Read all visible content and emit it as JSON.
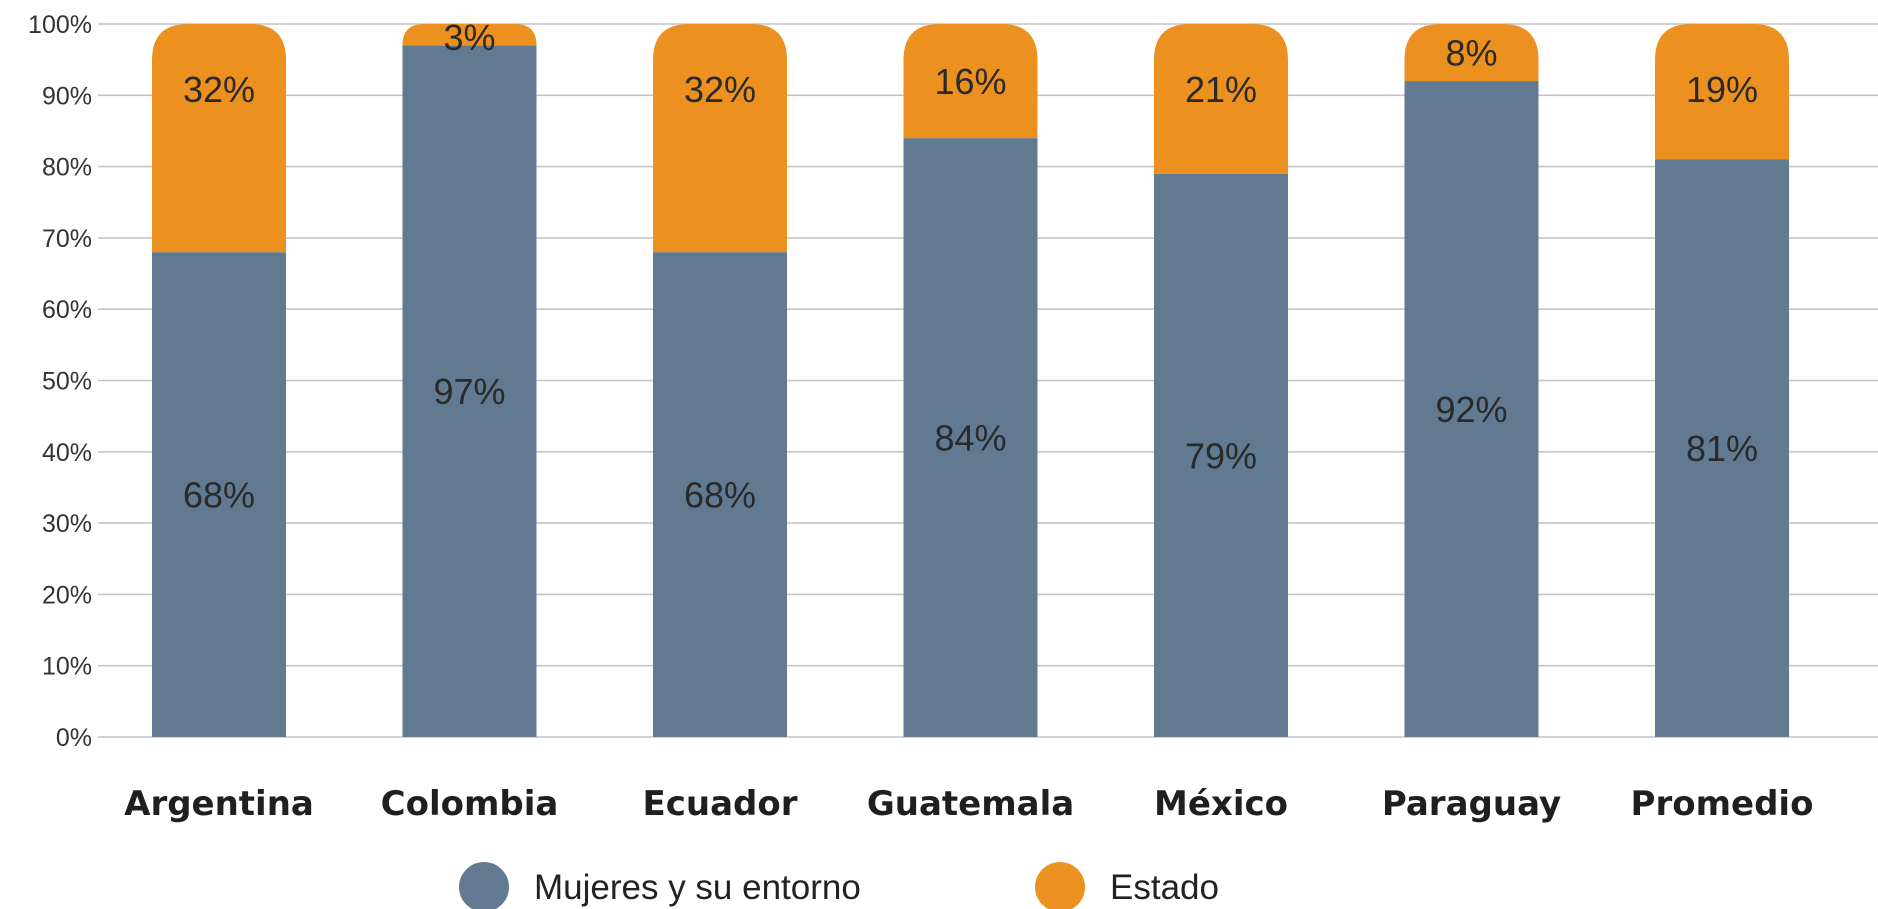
{
  "chart_data": {
    "type": "bar",
    "stacked": true,
    "categories": [
      "Argentina",
      "Colombia",
      "Ecuador",
      "Guatemala",
      "México",
      "Paraguay",
      "Promedio"
    ],
    "series": [
      {
        "name": "Mujeres y su entorno",
        "color": "#627a91",
        "values": [
          68,
          97,
          68,
          84,
          79,
          92,
          81
        ],
        "labels": [
          "68%",
          "97%",
          "68%",
          "84%",
          "79%",
          "92%",
          "81%"
        ]
      },
      {
        "name": "Estado",
        "color": "#ec9020",
        "values": [
          32,
          3,
          32,
          16,
          21,
          8,
          19
        ],
        "labels": [
          "32%",
          "3%",
          "32%",
          "16%",
          "21%",
          "8%",
          "19%"
        ]
      }
    ],
    "ylim": [
      0,
      100
    ],
    "yticks": [
      0,
      10,
      20,
      30,
      40,
      50,
      60,
      70,
      80,
      90,
      100
    ],
    "ytick_labels": [
      "0%",
      "10%",
      "20%",
      "30%",
      "40%",
      "50%",
      "60%",
      "70%",
      "80%",
      "90%",
      "100%"
    ],
    "grid": true,
    "legend_position": "bottom-center",
    "title": "",
    "xlabel": "",
    "ylabel": ""
  }
}
